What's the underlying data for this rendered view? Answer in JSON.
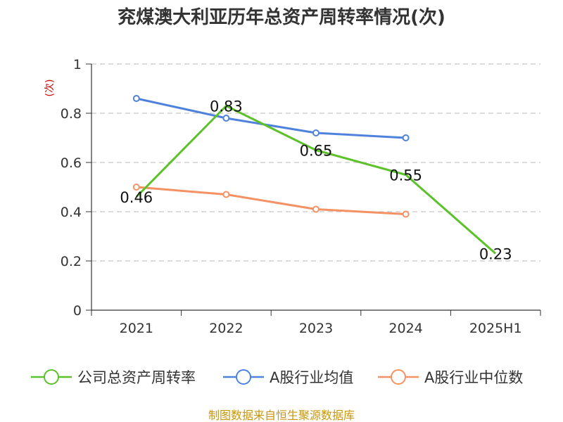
{
  "chart_data": {
    "type": "line",
    "title": "兖煤澳大利亚历年总资产周转率情况(次)",
    "ylabel": "(次)",
    "xlabel": "",
    "categories": [
      "2021",
      "2022",
      "2023",
      "2024",
      "2025H1"
    ],
    "ylim": [
      0,
      1
    ],
    "yticks": [
      {
        "value": 0,
        "label": "0"
      },
      {
        "value": 0.2,
        "label": "0.2"
      },
      {
        "value": 0.4,
        "label": "0.4"
      },
      {
        "value": 0.6,
        "label": "0.6"
      },
      {
        "value": 0.8,
        "label": "0.8"
      },
      {
        "value": 1,
        "label": "1"
      }
    ],
    "grid": true,
    "legend_position": "bottom",
    "series": [
      {
        "name": "公司总资产周转率",
        "color": "#5cc12a",
        "values": [
          0.46,
          0.83,
          0.65,
          0.55,
          0.23
        ],
        "labels": [
          "0.46",
          "0.83",
          "0.65",
          "0.55",
          "0.23"
        ],
        "markers": false
      },
      {
        "name": "A股行业均值",
        "color": "#4f82dc",
        "values": [
          0.86,
          0.78,
          0.72,
          0.7,
          null
        ],
        "labels": null,
        "markers": true
      },
      {
        "name": "A股行业中位数",
        "color": "#f59264",
        "values": [
          0.5,
          0.47,
          0.41,
          0.39,
          null
        ],
        "labels": null,
        "markers": true
      }
    ],
    "source": "制图数据来自恒生聚源数据库"
  }
}
